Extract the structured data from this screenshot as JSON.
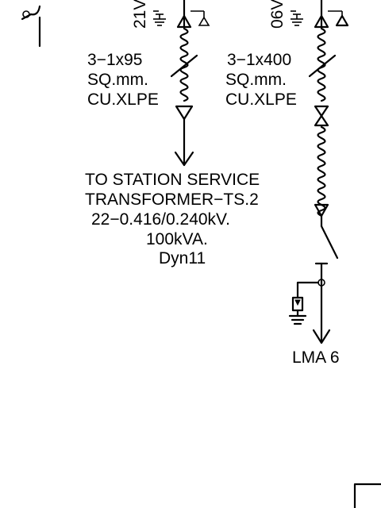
{
  "left_feeder": {
    "tag": "21V",
    "cable_size": "3−1x95",
    "cable_unit": "SQ.mm.",
    "cable_type": "CU.XLPE",
    "destination": {
      "line1": "TO STATION SERVICE",
      "line2": "TRANSFORMER−TS.2",
      "line3": "22−0.416/0.240kV.",
      "line4": "100kVA.",
      "line5": "Dyn11"
    }
  },
  "right_feeder": {
    "tag": "06V",
    "cable_size": "3−1x400",
    "cable_unit": "SQ.mm.",
    "cable_type": "CU.XLPE",
    "destination": "LMA 6"
  }
}
